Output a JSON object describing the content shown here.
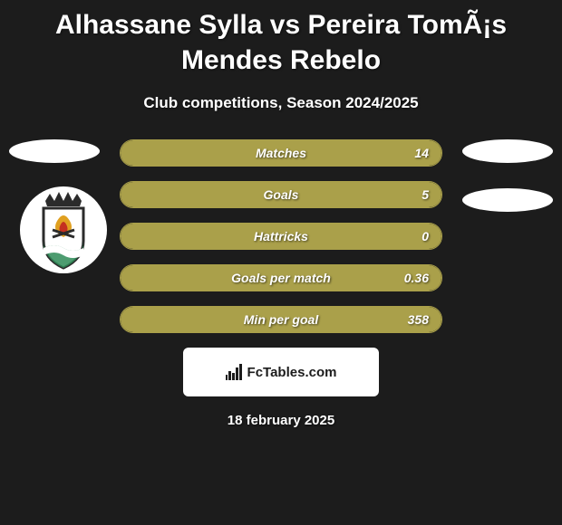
{
  "title": "Alhassane Sylla vs Pereira TomÃ¡s Mendes Rebelo",
  "subtitle": "Club competitions, Season 2024/2025",
  "date": "18 february 2025",
  "brand": "FcTables.com",
  "colors": {
    "fill": "#aaa04a",
    "border": "#aaa04a",
    "background": "#1c1c1c",
    "text": "#ffffff",
    "ellipse": "#ffffff"
  },
  "stats": [
    {
      "label": "Matches",
      "value": "14",
      "fill_pct": 100
    },
    {
      "label": "Goals",
      "value": "5",
      "fill_pct": 100
    },
    {
      "label": "Hattricks",
      "value": "0",
      "fill_pct": 100
    },
    {
      "label": "Goals per match",
      "value": "0.36",
      "fill_pct": 100
    },
    {
      "label": "Min per goal",
      "value": "358",
      "fill_pct": 100
    }
  ],
  "club_logo_desc": "rio-ave-crest"
}
